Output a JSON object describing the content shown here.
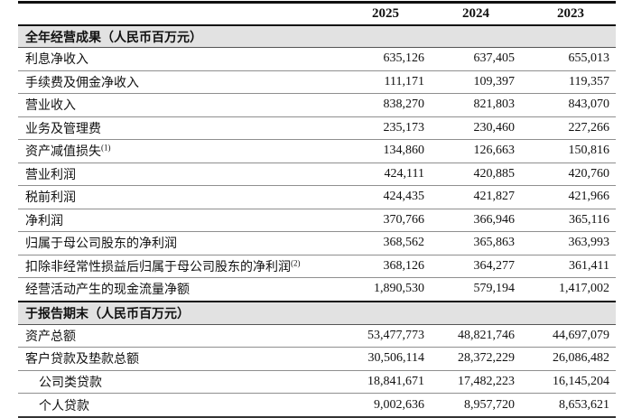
{
  "table": {
    "header": {
      "columns": [
        "2025",
        "2024",
        "2023"
      ]
    },
    "sections": [
      {
        "title": "全年经营成果（人民币百万元）",
        "rows": [
          {
            "label": "利息净收入",
            "sup": "",
            "indent": false,
            "values": [
              "635,126",
              "637,405",
              "655,013"
            ]
          },
          {
            "label": "手续费及佣金净收入",
            "sup": "",
            "indent": false,
            "values": [
              "111,171",
              "109,397",
              "119,357"
            ]
          },
          {
            "label": "营业收入",
            "sup": "",
            "indent": false,
            "values": [
              "838,270",
              "821,803",
              "843,070"
            ]
          },
          {
            "label": "业务及管理费",
            "sup": "",
            "indent": false,
            "values": [
              "235,173",
              "230,460",
              "227,266"
            ]
          },
          {
            "label": "资产减值损失",
            "sup": "(1)",
            "indent": false,
            "values": [
              "134,860",
              "126,663",
              "150,816"
            ]
          },
          {
            "label": "营业利润",
            "sup": "",
            "indent": false,
            "values": [
              "424,111",
              "420,885",
              "420,760"
            ]
          },
          {
            "label": "税前利润",
            "sup": "",
            "indent": false,
            "values": [
              "424,435",
              "421,827",
              "421,966"
            ]
          },
          {
            "label": "净利润",
            "sup": "",
            "indent": false,
            "values": [
              "370,766",
              "366,946",
              "365,116"
            ]
          },
          {
            "label": "归属于母公司股东的净利润",
            "sup": "",
            "indent": false,
            "values": [
              "368,562",
              "365,863",
              "363,993"
            ]
          },
          {
            "label": "扣除非经常性损益后归属于母公司股东的净利润",
            "sup": "(2)",
            "indent": false,
            "values": [
              "368,126",
              "364,277",
              "361,411"
            ]
          },
          {
            "label": "经营活动产生的现金流量净额",
            "sup": "",
            "indent": false,
            "values": [
              "1,890,530",
              "579,194",
              "1,417,002"
            ]
          }
        ]
      },
      {
        "title": "于报告期末（人民币百万元）",
        "rows": [
          {
            "label": "资产总额",
            "sup": "",
            "indent": false,
            "values": [
              "53,477,773",
              "48,821,746",
              "44,697,079"
            ]
          },
          {
            "label": "客户贷款及垫款总额",
            "sup": "",
            "indent": false,
            "values": [
              "30,506,114",
              "28,372,229",
              "26,086,482"
            ]
          },
          {
            "label": "公司类贷款",
            "sup": "",
            "indent": true,
            "values": [
              "18,841,671",
              "17,482,223",
              "16,145,204"
            ]
          },
          {
            "label": "个人贷款",
            "sup": "",
            "indent": true,
            "values": [
              "9,002,636",
              "8,957,720",
              "8,653,621"
            ]
          }
        ]
      }
    ]
  },
  "colors": {
    "section_bar_bg": "#e2e2e2",
    "rule_dark": "#111111",
    "rule_light": "#8f8f8f",
    "text": "#111111"
  }
}
